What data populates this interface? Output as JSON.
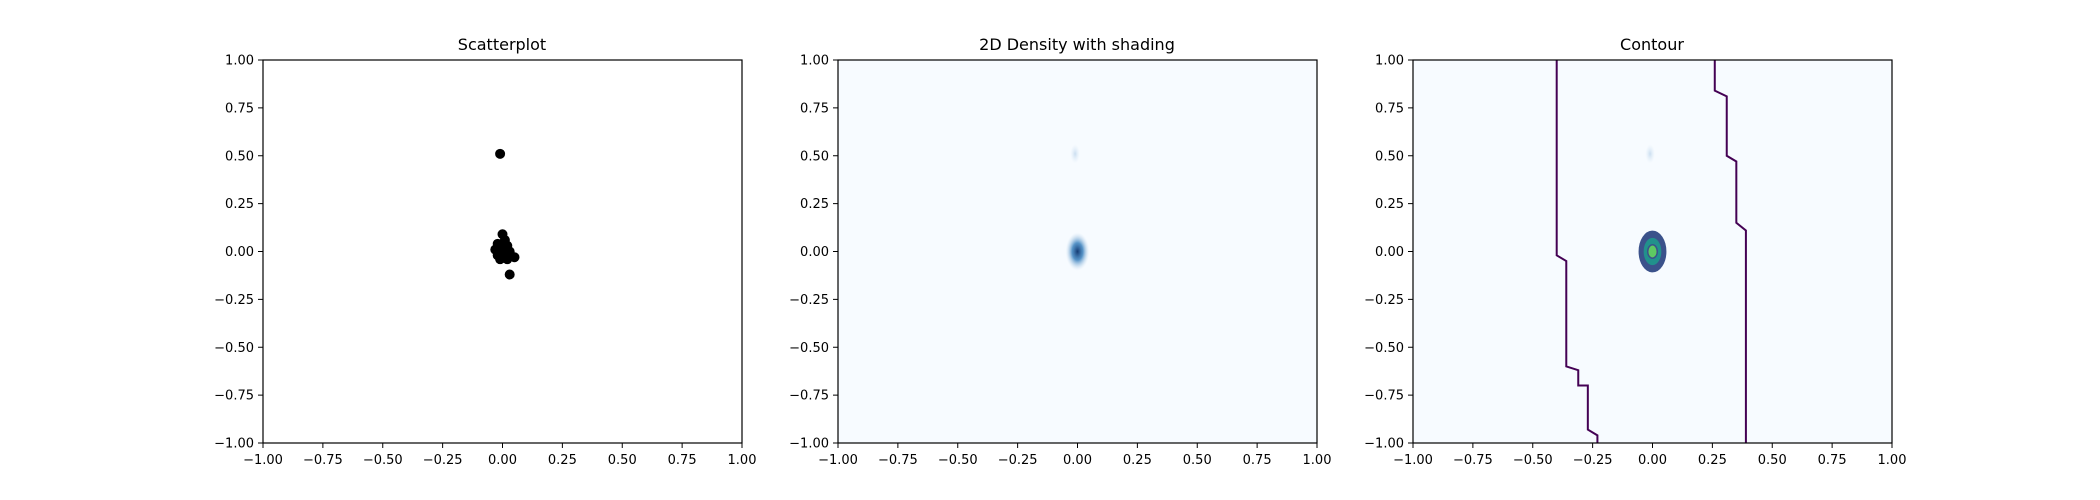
{
  "colors": {
    "scatter_point": "#000000",
    "density_background": "#f7fbff",
    "density_core": "#08519c",
    "contour_outer": "#440154",
    "contour_mid": "#3b528b",
    "contour_inner": "#21918c",
    "contour_peak": "#5ec962"
  },
  "chart_data": [
    {
      "type": "scatter",
      "title": "Scatterplot",
      "xlabel": "",
      "ylabel": "",
      "xlim": [
        -1.0,
        1.0
      ],
      "ylim": [
        -1.0,
        1.0
      ],
      "xticks": [
        "−1.00",
        "−0.75",
        "−0.50",
        "−0.25",
        "0.00",
        "0.25",
        "0.50",
        "0.75",
        "1.00"
      ],
      "yticks": [
        "1.00",
        "0.75",
        "0.50",
        "0.25",
        "0.00",
        "−0.25",
        "−0.50",
        "−0.75",
        "−1.00"
      ],
      "points": [
        {
          "x": -0.01,
          "y": 0.51
        },
        {
          "x": 0.0,
          "y": 0.09
        },
        {
          "x": 0.01,
          "y": 0.06
        },
        {
          "x": -0.02,
          "y": 0.04
        },
        {
          "x": 0.02,
          "y": 0.03
        },
        {
          "x": -0.03,
          "y": 0.01
        },
        {
          "x": 0.0,
          "y": 0.02
        },
        {
          "x": 0.01,
          "y": 0.0
        },
        {
          "x": -0.01,
          "y": -0.01
        },
        {
          "x": 0.02,
          "y": -0.01
        },
        {
          "x": -0.02,
          "y": -0.02
        },
        {
          "x": 0.03,
          "y": 0.0
        },
        {
          "x": 0.0,
          "y": -0.03
        },
        {
          "x": -0.01,
          "y": -0.04
        },
        {
          "x": 0.02,
          "y": -0.04
        },
        {
          "x": 0.05,
          "y": -0.03
        },
        {
          "x": 0.01,
          "y": -0.02
        },
        {
          "x": 0.03,
          "y": -0.12
        }
      ]
    },
    {
      "type": "heatmap",
      "title": "2D Density with shading",
      "xlabel": "",
      "ylabel": "",
      "xlim": [
        -1.0,
        1.0
      ],
      "ylim": [
        -1.0,
        1.0
      ],
      "xticks": [
        "−1.00",
        "−0.75",
        "−0.50",
        "−0.25",
        "0.00",
        "0.25",
        "0.50",
        "0.75",
        "1.00"
      ],
      "yticks": [
        "1.00",
        "0.75",
        "0.50",
        "0.25",
        "0.00",
        "−0.25",
        "−0.50",
        "−0.75",
        "−1.00"
      ],
      "colormap": "Blues",
      "peaks": [
        {
          "x": 0.0,
          "y": 0.0,
          "intensity": 1.0
        },
        {
          "x": -0.01,
          "y": 0.51,
          "intensity": 0.15
        }
      ]
    },
    {
      "type": "heatmap",
      "title": "Contour",
      "xlabel": "",
      "ylabel": "",
      "xlim": [
        -1.0,
        1.0
      ],
      "ylim": [
        -1.0,
        1.0
      ],
      "xticks": [
        "−1.00",
        "−0.75",
        "−0.50",
        "−0.25",
        "0.00",
        "0.25",
        "0.50",
        "0.75",
        "1.00"
      ],
      "yticks": [
        "1.00",
        "0.75",
        "0.50",
        "0.25",
        "0.00",
        "−0.25",
        "−0.50",
        "−0.75",
        "−1.00"
      ],
      "colormap": "Blues",
      "contour_lines": [
        {
          "level": "outer-left",
          "points": [
            [
              -0.4,
              1.0
            ],
            [
              -0.4,
              -0.02
            ],
            [
              -0.36,
              -0.05
            ],
            [
              -0.36,
              -0.6
            ],
            [
              -0.31,
              -0.62
            ],
            [
              -0.31,
              -0.7
            ],
            [
              -0.27,
              -0.7
            ],
            [
              -0.27,
              -0.93
            ],
            [
              -0.23,
              -0.96
            ],
            [
              -0.23,
              -1.0
            ]
          ]
        },
        {
          "level": "outer-right",
          "points": [
            [
              0.26,
              1.0
            ],
            [
              0.26,
              0.84
            ],
            [
              0.31,
              0.81
            ],
            [
              0.31,
              0.5
            ],
            [
              0.35,
              0.47
            ],
            [
              0.35,
              0.15
            ],
            [
              0.39,
              0.11
            ],
            [
              0.39,
              -1.0
            ]
          ]
        }
      ],
      "contour_rings": [
        {
          "x": 0.0,
          "y": 0.0,
          "rx": 0.055,
          "ry": 0.105,
          "fill": "#3b528b"
        },
        {
          "x": 0.0,
          "y": 0.0,
          "rx": 0.04,
          "ry": 0.075,
          "fill": "#21918c"
        },
        {
          "x": 0.0,
          "y": 0.0,
          "rx": 0.02,
          "ry": 0.035,
          "fill": "#5ec962"
        }
      ]
    }
  ]
}
